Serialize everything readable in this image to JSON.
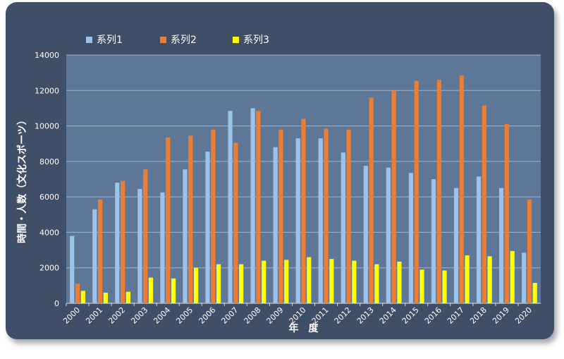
{
  "colors": {
    "card_background": "#3f4f68",
    "plot_background": "#5f7796",
    "gridline": "#9fb3cc",
    "text": "#ffffff"
  },
  "chart_data": {
    "type": "bar",
    "categories": [
      "2000",
      "2001",
      "2002",
      "2003",
      "2004",
      "2005",
      "2006",
      "2007",
      "2008",
      "2009",
      "2010",
      "2011",
      "2012",
      "2013",
      "2014",
      "2015",
      "2016",
      "2017",
      "2018",
      "2019",
      "2020"
    ],
    "series": [
      {
        "name": "系列1",
        "color": "#9cc3e6",
        "values": [
          3800,
          5300,
          6800,
          6450,
          6250,
          7550,
          8550,
          10850,
          11000,
          8800,
          9300,
          9300,
          8500,
          7750,
          7650,
          7350,
          7000,
          6500,
          7150,
          6500,
          2850
        ]
      },
      {
        "name": "系列2",
        "color": "#ed7d31",
        "values": [
          1100,
          5850,
          6900,
          7550,
          9350,
          9450,
          9800,
          9050,
          10850,
          9800,
          10400,
          9850,
          9800,
          11600,
          12000,
          12550,
          12600,
          12850,
          11150,
          10100,
          5850
        ]
      },
      {
        "name": "系列3",
        "color": "#ffff00",
        "values": [
          700,
          600,
          650,
          1450,
          1400,
          2000,
          2200,
          2200,
          2400,
          2450,
          2600,
          2500,
          2400,
          2200,
          2350,
          1900,
          1850,
          2700,
          2650,
          2950,
          1150
        ]
      }
    ],
    "ylabel": "時間・人数（文化スポーツ）",
    "xlabel": "年　度",
    "ylim": [
      0,
      14000
    ],
    "yticks": [
      0,
      2000,
      4000,
      6000,
      8000,
      10000,
      12000,
      14000
    ],
    "grid": true,
    "legend_position": "top"
  }
}
